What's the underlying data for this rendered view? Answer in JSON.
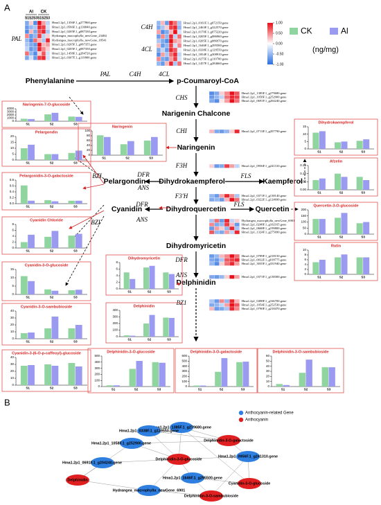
{
  "panels": [
    "A",
    "B"
  ],
  "legend": {
    "series": [
      {
        "name": "CK",
        "color": "#90d4a0"
      },
      {
        "name": "Al",
        "color": "#9a9af0"
      }
    ],
    "unit": "(ng/mg)"
  },
  "colorbar": {
    "ticks": [
      {
        "value": 1,
        "label": "1.00"
      },
      {
        "value": 0.5,
        "label": "0.50"
      },
      {
        "value": 0,
        "label": "0.00"
      },
      {
        "value": -0.5,
        "label": "-0.50"
      },
      {
        "value": -1,
        "label": "-1.00"
      }
    ]
  },
  "heatmaps": [
    {
      "groups": [
        "Al",
        "CK"
      ],
      "columns": [
        "S1",
        "S2",
        "S3",
        "S1",
        "S2",
        "S3"
      ],
      "enzymes": [
        "PAL"
      ],
      "genes": [
        "Hma1.2p1_1356F.1_g277860.gene",
        "Hma1.2p1_0566F.1_g136840.gene",
        "Hma1.2p1_0205F.1_g087330.gene",
        "Hydrangea_macrophylla_newGene_23484",
        "Hydrangea_macrophylla_newGene_18541",
        "Hma1.2p1_0205F.1_g087355.gene",
        "Hma1.2p1_0205F.1_g087350.gene",
        "Hma1.2p1_1458F.1_g284720.gene",
        "Hma1.2p1_0307F.1_g119900.gene"
      ],
      "values": [
        [
          -0.6,
          0.2,
          -0.8,
          1,
          0.4,
          -0.3
        ],
        [
          -0.7,
          -0.5,
          -0.4,
          0.9,
          0.8,
          -0.2
        ],
        [
          -0.8,
          0.3,
          -0.6,
          0.7,
          0.9,
          -0.4
        ],
        [
          0.5,
          -0.7,
          -0.5,
          0.8,
          -0.3,
          0.2
        ],
        [
          -0.5,
          -0.8,
          0.6,
          0.3,
          -0.4,
          0.9
        ],
        [
          -0.4,
          -0.6,
          -0.7,
          1,
          0.3,
          0.4
        ],
        [
          -0.3,
          -0.7,
          -0.6,
          0.9,
          0.5,
          0.2
        ],
        [
          0.6,
          -0.5,
          -0.8,
          0.2,
          0.7,
          -0.2
        ],
        [
          -0.6,
          -0.2,
          -0.7,
          0.8,
          0.9,
          -0.2
        ]
      ]
    },
    {
      "enzymes": [
        "C4H",
        "4CL"
      ],
      "genes": [
        "Hma1.2p1_0161F.1_g072150.gene",
        "Hma1.2p1_2463F.1_g322570.gene",
        "Hma1.2p1_0170F.1_g075220.gene",
        "Hma1.2p1_0205F.1_g086960.gene",
        "Hma1.2p1_0205F.1_g086970.gene",
        "Hma1.2p1_1646F.1_g295500.gene",
        "Hma1.2p1_0338F.1_g129550.gene",
        "Hma1.2p1_1854F.1_g308910.gene",
        "Hma1.2p1_0275F.1_g110700.gene",
        "Hma1.2p1_1457F.1_g284660.gene"
      ],
      "values": [
        [
          -0.5,
          0.3,
          -0.7,
          0.9,
          0.6,
          -0.4
        ],
        [
          -0.6,
          -0.4,
          0.2,
          0.8,
          0.9,
          -0.5
        ],
        [
          0.4,
          -0.8,
          -0.6,
          0.3,
          1,
          -0.2
        ],
        [
          -0.7,
          0.5,
          -0.5,
          0.9,
          -0.3,
          0.6
        ],
        [
          -0.4,
          -0.6,
          -0.8,
          1,
          0.4,
          0.3
        ],
        [
          0.3,
          -0.7,
          -0.5,
          0.8,
          -0.2,
          0.5
        ],
        [
          -0.6,
          -0.3,
          -0.7,
          0.9,
          0.7,
          -0.1
        ],
        [
          -0.8,
          0.4,
          -0.4,
          0.6,
          0.9,
          -0.3
        ],
        [
          0.5,
          -0.6,
          -0.7,
          0.4,
          0.8,
          -0.2
        ],
        [
          -0.5,
          -0.7,
          0.3,
          0.9,
          -0.4,
          0.6
        ]
      ]
    },
    {
      "genes": [
        "Hma1.2p1_1385F.1_g279680.gene",
        "Hma1.2p1_1058F.1_g252900.gene",
        "Hma1.2p1_0691F.1_g204240.gene"
      ],
      "values": [
        [
          -0.8,
          -0.6,
          0.2,
          0.5,
          1,
          0.7
        ],
        [
          -0.7,
          -0.5,
          -0.3,
          0.6,
          0.9,
          0.8
        ],
        [
          -0.6,
          -0.8,
          0.1,
          0.4,
          1,
          0.6
        ]
      ]
    },
    {
      "genes": [
        "Hma1.2p1_0713F.1_g207790.gene"
      ],
      "values": [
        [
          0.3,
          -0.6,
          -0.7,
          -0.5,
          0.2,
          0.9
        ]
      ]
    },
    {
      "genes": [
        "Hma1.2p1_0956F.1_g241310.gene"
      ],
      "values": [
        [
          0.2,
          -0.7,
          -0.6,
          0.8,
          0.4,
          -0.3
        ]
      ]
    },
    {
      "genes": [
        "Hma1.2p1_0371F.1_g138140.gene",
        "Hma1.2p1_0322F.1_g124690.gene"
      ],
      "values": [
        [
          -0.5,
          -0.7,
          0.4,
          0.9,
          0.5,
          -0.4
        ],
        [
          -0.6,
          -0.5,
          -0.7,
          0.3,
          1,
          0.6
        ]
      ]
    },
    {
      "genes": [
        "Hydrangea_macrophylla_newGene_6901",
        "Hma1.2p1_0248F.1_g102165.gene",
        "Hma1.2p1_0668F.1_g199800.gene",
        "Hma1.2p1_1324F.1_g275690.gene"
      ],
      "values": [
        [
          -0.4,
          0.6,
          -0.7,
          0.9,
          -0.3,
          0.2
        ],
        [
          0.5,
          -0.6,
          -0.5,
          0.8,
          0.3,
          -0.7
        ],
        [
          -0.7,
          0.4,
          0.2,
          -0.5,
          0.9,
          -0.4
        ],
        [
          0.7,
          -0.5,
          -0.6,
          0.4,
          -0.3,
          0.9
        ]
      ]
    },
    {
      "genes": [
        "Hma1.2p1_0789F.1_g218150.gene",
        "Hma1.2p1_0032F.1_g018775.gene",
        "Hma1.2p1_3035F.1_g331940.gene"
      ],
      "values": [
        [
          -0.7,
          -0.5,
          0.3,
          0.5,
          1,
          0.6
        ],
        [
          -0.6,
          -0.7,
          -0.4,
          0.7,
          0.8,
          0.9
        ],
        [
          -0.5,
          -0.8,
          0.2,
          0.6,
          0.9,
          0.4
        ]
      ]
    },
    {
      "genes": [
        "Hma1.2p1_0371F.1_g138300.gene"
      ],
      "values": [
        [
          -0.6,
          -0.7,
          -0.5,
          0.2,
          1,
          0.4
        ]
      ]
    },
    {
      "genes": [
        "Hma1.2p1_0498F.1_g166700.gene",
        "Hma1.2p1_1054F.1_g252530.gene",
        "Hma1.2p1_0790F.1_g218470.gene"
      ],
      "values": [
        [
          -0.4,
          -0.7,
          0.5,
          -0.5,
          0.9,
          0.3
        ],
        [
          -0.6,
          -0.5,
          -0.3,
          0.4,
          1,
          0.7
        ],
        [
          0.3,
          -0.7,
          -0.6,
          -0.4,
          0.9,
          0.5
        ]
      ]
    }
  ],
  "pathway": {
    "compounds": [
      "Phenylalanine",
      "p-Coumaroyl-CoA",
      "Narigenin Chalcone",
      "Naringenin",
      "Dihydrokaempferol",
      "Kaempferol",
      "Pelargondin",
      "Dihydroquercetin",
      "Quercetin",
      "Cyanidin",
      "Dihydromyricetin",
      "Delphinidin"
    ],
    "enzymes": [
      "PAL",
      "C4H",
      "4CL",
      "CHS",
      "CHI",
      "F3H",
      "BZI",
      "DFR",
      "ANS",
      "FLS",
      "F3'H",
      "DFR",
      "ANS",
      "FLS",
      "BZI",
      "DFR",
      "ANS",
      "BZ1"
    ]
  },
  "categories": [
    "S1",
    "S2",
    "S3"
  ],
  "charts": [
    {
      "title": "Naringenin-7-O-glucoside",
      "ylim": [
        0,
        4000
      ],
      "yticks": [
        0,
        1000,
        2000,
        3000,
        4000
      ],
      "series": [
        [
          800,
          2200,
          1500
        ],
        [
          700,
          2700,
          1400
        ]
      ]
    },
    {
      "title": "Pelargondin",
      "ylim": [
        0,
        20
      ],
      "yticks": [
        0,
        5,
        10,
        15,
        20
      ],
      "series": [
        [
          10,
          5,
          6
        ],
        [
          13,
          5,
          8
        ]
      ]
    },
    {
      "title": "Pelargonidin-3-O-galactoside",
      "ylim": [
        0,
        0.8
      ],
      "yticks": [
        {
          "value": 0,
          "label": "0.0"
        },
        0.2,
        0.4,
        0.6,
        0.8
      ],
      "series": [
        [
          0.62,
          0.12,
          0.1
        ],
        [
          0.1,
          0.08,
          0.1
        ]
      ]
    },
    {
      "title": "Cyanidin Chloride",
      "ylim": [
        0,
        8
      ],
      "yticks": [
        0,
        2,
        4,
        6,
        8
      ],
      "series": [
        [
          2,
          3.8,
          4.2
        ],
        [
          4.5,
          5.8,
          4.8
        ]
      ]
    },
    {
      "title": "Cyanidin-3-O-glucoside",
      "ylim": [
        0,
        15
      ],
      "yticks": [
        0,
        5,
        10,
        15
      ],
      "series": [
        [
          11,
          3,
          2.5
        ],
        [
          8,
          2.2,
          2.8
        ]
      ]
    },
    {
      "title": "Cyanidin-3-O-sambubioside",
      "ylim": [
        0,
        40
      ],
      "yticks": [
        0,
        10,
        20,
        30,
        40
      ],
      "series": [
        [
          8,
          15,
          15
        ],
        [
          9,
          32,
          20
        ]
      ]
    },
    {
      "title": "Cyanidin-3-(6-O-p-caffeoyl)-glucoside",
      "ylim": [
        0,
        40
      ],
      "yticks": [
        0,
        10,
        20,
        30,
        40
      ],
      "series": [
        [
          28,
          30,
          32
        ],
        [
          29,
          28,
          27
        ]
      ]
    },
    {
      "title": "Naringenin",
      "ylim": [
        0,
        100
      ],
      "yticks": [
        0,
        20,
        40,
        60,
        80,
        100
      ],
      "series": [
        [
          82,
          45,
          60
        ],
        [
          75,
          58,
          75
        ]
      ]
    },
    {
      "title": "Dihydromyricetin",
      "ylim": [
        0,
        8
      ],
      "yticks": [
        0,
        2,
        4,
        6,
        8
      ],
      "series": [
        [
          5,
          6.5,
          5
        ],
        [
          3,
          7,
          4.5
        ]
      ]
    },
    {
      "title": "Delphinidin",
      "ylim": [
        0,
        400
      ],
      "yticks": [
        0,
        100,
        200,
        300,
        400
      ],
      "series": [
        [
          20,
          200,
          290
        ],
        [
          15,
          330,
          285
        ]
      ]
    },
    {
      "title": "Dihydrokaempferol",
      "ylim": [
        0,
        15
      ],
      "yticks": [
        0,
        5,
        10,
        15
      ],
      "series": [
        [
          11,
          4.5,
          5.5
        ],
        [
          12,
          5,
          6.5
        ]
      ]
    },
    {
      "title": "Afzelin",
      "ylim": [
        0,
        0.15
      ],
      "yticks": [
        {
          "value": 0,
          "label": "0.00"
        },
        0.05,
        {
          "value": 0.1,
          "label": "0.10"
        },
        0.15
      ],
      "series": [
        [
          0.06,
          0.1,
          0.08
        ],
        [
          0.07,
          0.08,
          0.06
        ]
      ]
    },
    {
      "title": "Quercetin-3-O-glucoside",
      "ylim": [
        0,
        200
      ],
      "yticks": [
        0,
        50,
        100,
        150,
        200
      ],
      "series": [
        [
          125,
          135,
          90
        ],
        [
          125,
          175,
          100
        ]
      ]
    },
    {
      "title": "Rutin",
      "ylim": [
        0,
        10
      ],
      "yticks": [
        0,
        2,
        4,
        6,
        8,
        10
      ],
      "series": [
        [
          5,
          7,
          7
        ],
        [
          6,
          8.2,
          7
        ]
      ]
    },
    {
      "title": "Delphinidin-3-O-glucoside",
      "ylim": [
        0,
        500
      ],
      "yticks": [
        0,
        100,
        200,
        300,
        400,
        500
      ],
      "series": [
        [
          20,
          290,
          400
        ],
        [
          20,
          420,
          390
        ]
      ]
    },
    {
      "title": "Delphinidin-3-O-galactoside",
      "ylim": [
        0,
        600
      ],
      "yticks": [
        0,
        100,
        200,
        300,
        400,
        500,
        600
      ],
      "series": [
        [
          20,
          290,
          480
        ],
        [
          20,
          560,
          490
        ]
      ]
    },
    {
      "title": "Delphinidin-3-O-sambubioside",
      "ylim": [
        0,
        60
      ],
      "yticks": [
        0,
        10,
        20,
        30,
        40,
        50,
        60
      ],
      "series": [
        [
          5,
          27,
          38
        ],
        [
          3,
          53,
          38
        ]
      ]
    }
  ],
  "network": {
    "legend": [
      {
        "label": "Anthocyanin-related Gene",
        "color": "#2f7fe0"
      },
      {
        "label": "Anthocyanin",
        "color": "#e02020"
      }
    ],
    "genes": [
      "Hma1.2p1_1385F.1_g279680.gene",
      "Hma1.2p1_0338F.1_g129550.gene",
      "Hma1.2p1_1058F.1_g252900.gene",
      "Hma1.2p1_0956F.1_g241310.gene",
      "Hma1.2p1_0691F.1_g204240.gene",
      "Hma1.2p1_1646F.1_g295500.gene",
      "Hydrangea_macrophylla_newGene_6901"
    ],
    "anthocyanins": [
      "Delphinidin-3-O-galactoside",
      "Delphinidin-3-O-glucoside",
      "Delphinidin",
      "Cyanidin-3-O-glucoside",
      "Delphinidin-3-O-sambubioside"
    ]
  }
}
